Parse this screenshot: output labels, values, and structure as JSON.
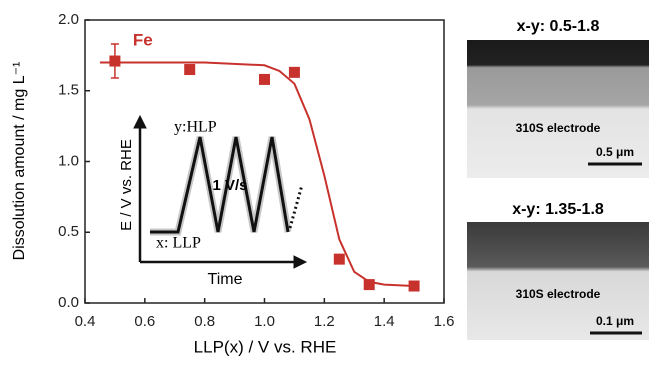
{
  "chart_data": {
    "type": "scatter",
    "xlabel": "LLP(x)  / V vs. RHE",
    "ylabel": "Dissolution amount / mg L⁻¹",
    "xlim": [
      0.4,
      1.6
    ],
    "ylim": [
      0,
      2.0
    ],
    "xticks": [
      0.4,
      0.6,
      0.8,
      {
        "value": 1.0,
        "label": "1.0"
      },
      1.2,
      1.4,
      1.6
    ],
    "yticks": [
      {
        "value": 0,
        "label": "0.0"
      },
      0.5,
      {
        "value": 1.0,
        "label": "1.0"
      },
      1.5,
      {
        "value": 2.0,
        "label": "2.0"
      }
    ],
    "series": [
      {
        "name": "Fe",
        "color": "#c8322d",
        "x": [
          0.5,
          0.75,
          1.0,
          1.1,
          1.25,
          1.35,
          1.5
        ],
        "values": [
          1.71,
          1.65,
          1.58,
          1.63,
          0.31,
          0.13,
          0.12
        ],
        "errors": [
          0.12,
          null,
          null,
          null,
          null,
          null,
          null
        ]
      }
    ],
    "fit_curve": {
      "color": "#c8322d",
      "x": [
        0.45,
        0.8,
        1.0,
        1.05,
        1.1,
        1.15,
        1.2,
        1.25,
        1.3,
        1.35,
        1.4,
        1.5
      ],
      "values": [
        1.7,
        1.7,
        1.68,
        1.64,
        1.55,
        1.3,
        0.9,
        0.45,
        0.22,
        0.15,
        0.13,
        0.12
      ]
    },
    "inset": {
      "y_label": "y:HLP",
      "axis_label": "E / V vs. RHE",
      "rate": "1 V/s",
      "x_label": "x: LLP",
      "time_label": "Time"
    }
  },
  "images": [
    {
      "title": "x-y: 0.5-1.8",
      "label": "310S electrode",
      "scale": "0.5 μm"
    },
    {
      "title": "x-y: 1.35-1.8",
      "label": "310S electrode",
      "scale": "0.1 μm"
    }
  ]
}
